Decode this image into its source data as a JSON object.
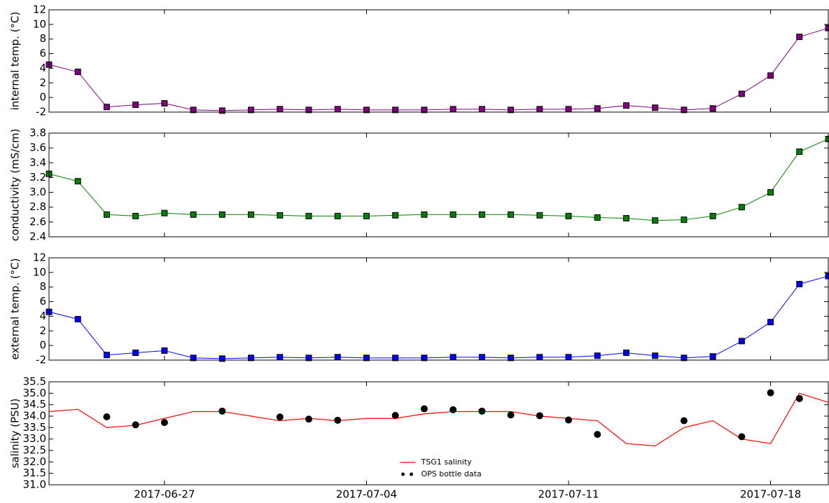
{
  "chart_data": [
    {
      "type": "scatter",
      "ylabel": "internal temp. ($^\\circ$C)",
      "connect": true,
      "color": "#800080",
      "x": [
        "2017-06-23",
        "2017-06-24",
        "2017-06-25",
        "2017-06-26",
        "2017-06-27",
        "2017-06-28",
        "2017-06-29",
        "2017-06-30",
        "2017-07-01",
        "2017-07-02",
        "2017-07-03",
        "2017-07-04",
        "2017-07-05",
        "2017-07-06",
        "2017-07-07",
        "2017-07-08",
        "2017-07-09",
        "2017-07-10",
        "2017-07-11",
        "2017-07-12",
        "2017-07-13",
        "2017-07-14",
        "2017-07-15",
        "2017-07-16",
        "2017-07-17",
        "2017-07-18",
        "2017-07-19",
        "2017-07-20"
      ],
      "values": [
        4.5,
        3.5,
        -1.3,
        -1.0,
        -0.8,
        -1.7,
        -1.8,
        -1.7,
        -1.6,
        -1.7,
        -1.6,
        -1.7,
        -1.7,
        -1.7,
        -1.6,
        -1.6,
        -1.7,
        -1.6,
        -1.6,
        -1.5,
        -1.1,
        -1.4,
        -1.7,
        -1.5,
        0.5,
        3.0,
        8.3,
        9.5
      ],
      "xlim": [
        "2017-06-23",
        "2017-07-20"
      ],
      "ylim": [
        -2,
        12
      ],
      "yticks": [
        -2,
        0,
        2,
        4,
        6,
        8,
        10,
        12
      ]
    },
    {
      "type": "scatter",
      "ylabel": "conductivity (mS/cm)",
      "connect": true,
      "color": "#008000",
      "x": [
        "2017-06-23",
        "2017-06-24",
        "2017-06-25",
        "2017-06-26",
        "2017-06-27",
        "2017-06-28",
        "2017-06-29",
        "2017-06-30",
        "2017-07-01",
        "2017-07-02",
        "2017-07-03",
        "2017-07-04",
        "2017-07-05",
        "2017-07-06",
        "2017-07-07",
        "2017-07-08",
        "2017-07-09",
        "2017-07-10",
        "2017-07-11",
        "2017-07-12",
        "2017-07-13",
        "2017-07-14",
        "2017-07-15",
        "2017-07-16",
        "2017-07-17",
        "2017-07-18",
        "2017-07-19",
        "2017-07-20"
      ],
      "values": [
        3.25,
        3.15,
        2.7,
        2.68,
        2.72,
        2.7,
        2.7,
        2.7,
        2.69,
        2.68,
        2.68,
        2.68,
        2.69,
        2.7,
        2.7,
        2.7,
        2.7,
        2.69,
        2.68,
        2.66,
        2.65,
        2.62,
        2.63,
        2.68,
        2.8,
        3.0,
        3.55,
        3.72
      ],
      "xlim": [
        "2017-06-23",
        "2017-07-20"
      ],
      "ylim": [
        2.4,
        3.8
      ],
      "yticks": [
        2.4,
        2.6,
        2.8,
        {
          "value": 3,
          "label": "3.0"
        },
        3.2,
        3.4,
        3.6,
        3.8
      ]
    },
    {
      "type": "scatter",
      "ylabel": "external temp. ($^\\circ$C)",
      "connect": true,
      "color": "#0000ff",
      "x": [
        "2017-06-23",
        "2017-06-24",
        "2017-06-25",
        "2017-06-26",
        "2017-06-27",
        "2017-06-28",
        "2017-06-29",
        "2017-06-30",
        "2017-07-01",
        "2017-07-02",
        "2017-07-03",
        "2017-07-04",
        "2017-07-05",
        "2017-07-06",
        "2017-07-07",
        "2017-07-08",
        "2017-07-09",
        "2017-07-10",
        "2017-07-11",
        "2017-07-12",
        "2017-07-13",
        "2017-07-14",
        "2017-07-15",
        "2017-07-16",
        "2017-07-17",
        "2017-07-18",
        "2017-07-19",
        "2017-07-20"
      ],
      "values": [
        4.6,
        3.6,
        -1.3,
        -1.0,
        -0.7,
        -1.7,
        -1.8,
        -1.7,
        -1.6,
        -1.7,
        -1.6,
        -1.7,
        -1.7,
        -1.7,
        -1.6,
        -1.6,
        -1.7,
        -1.6,
        -1.6,
        -1.4,
        -1.0,
        -1.4,
        -1.7,
        -1.5,
        0.6,
        3.2,
        8.4,
        9.5
      ],
      "xlim": [
        "2017-06-23",
        "2017-07-20"
      ],
      "ylim": [
        -2,
        12
      ],
      "yticks": [
        -2,
        0,
        2,
        4,
        6,
        8,
        10,
        12
      ]
    },
    {
      "type": "line",
      "ylabel": "salinity (PSU)",
      "legend": "lower center",
      "series": [
        {
          "name": "TSG1 salinity",
          "color": "#ff0000",
          "x": [
            "2017-06-23",
            "2017-06-24",
            "2017-06-25",
            "2017-06-26",
            "2017-06-27",
            "2017-06-28",
            "2017-06-29",
            "2017-06-30",
            "2017-07-01",
            "2017-07-02",
            "2017-07-03",
            "2017-07-04",
            "2017-07-05",
            "2017-07-06",
            "2017-07-07",
            "2017-07-08",
            "2017-07-09",
            "2017-07-10",
            "2017-07-11",
            "2017-07-12",
            "2017-07-13",
            "2017-07-14",
            "2017-07-15",
            "2017-07-16",
            "2017-07-17",
            "2017-07-18",
            "2017-07-19",
            "2017-07-20"
          ],
          "values": [
            34.2,
            34.3,
            33.5,
            33.6,
            33.9,
            34.2,
            34.2,
            34.0,
            33.8,
            33.9,
            33.8,
            33.9,
            33.9,
            34.1,
            34.2,
            34.2,
            34.2,
            34.0,
            33.9,
            33.8,
            32.8,
            32.7,
            33.5,
            33.8,
            33.0,
            32.8,
            35.0,
            34.6
          ]
        },
        {
          "name": "OPS bottle data",
          "color": "#000000",
          "type": "scatter",
          "x": [
            "2017-06-25",
            "2017-06-26",
            "2017-06-27",
            "2017-06-29",
            "2017-07-01",
            "2017-07-02",
            "2017-07-03",
            "2017-07-05",
            "2017-07-06",
            "2017-07-07",
            "2017-07-08",
            "2017-07-09",
            "2017-07-10",
            "2017-07-11",
            "2017-07-12",
            "2017-07-15",
            "2017-07-17",
            "2017-07-18",
            "2017-07-19"
          ],
          "values": [
            33.97,
            33.62,
            33.72,
            34.22,
            33.96,
            33.87,
            33.82,
            34.03,
            34.32,
            34.28,
            34.22,
            34.05,
            34.02,
            33.83,
            33.2,
            33.8,
            33.1,
            35.02,
            34.77
          ]
        }
      ],
      "xlim": [
        "2017-06-23",
        "2017-07-20"
      ],
      "xticks": [
        "2017-06-27",
        "2017-07-04",
        "2017-07-11",
        "2017-07-18"
      ],
      "ylim": [
        31,
        35.5
      ],
      "yticks": [
        {
          "value": 31,
          "label": "31.0"
        },
        31.5,
        {
          "value": 32,
          "label": "32.0"
        },
        32.5,
        {
          "value": 33,
          "label": "33.0"
        },
        33.5,
        {
          "value": 34,
          "label": "34.0"
        },
        34.5,
        {
          "value": 35,
          "label": "35.0"
        },
        35.5
      ]
    }
  ]
}
